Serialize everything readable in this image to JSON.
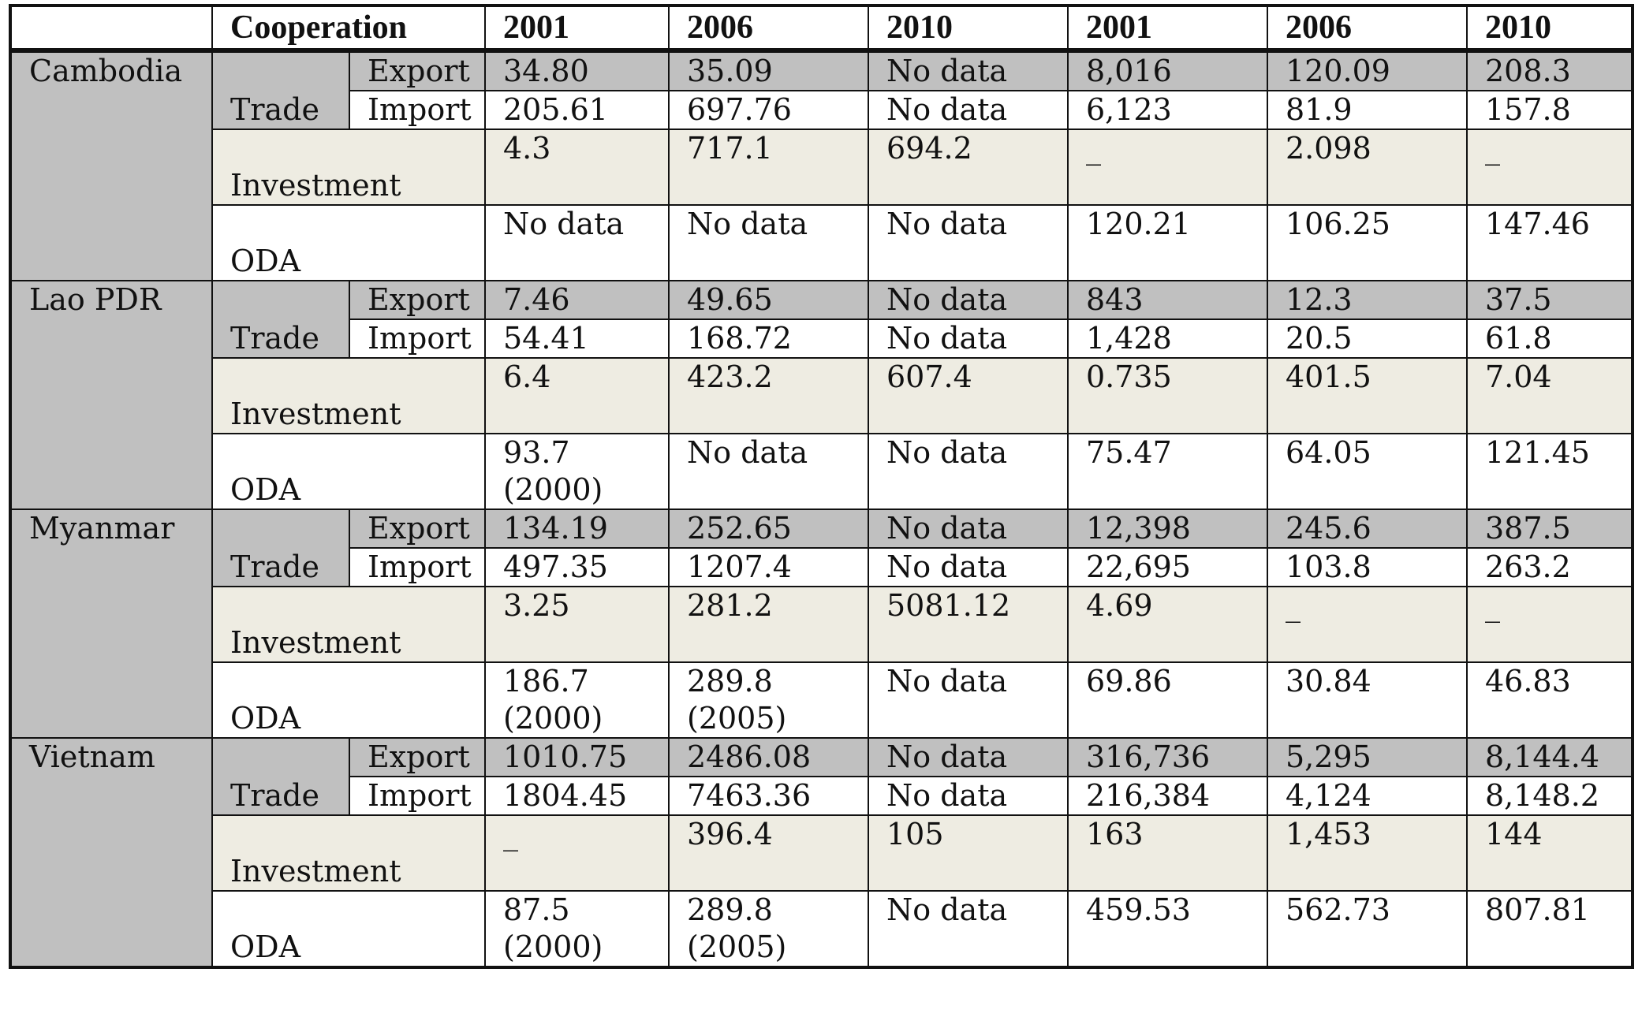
{
  "header": {
    "corner": "",
    "cooperation": "Cooperation",
    "years": [
      "2001",
      "2006",
      "2010",
      "2001",
      "2006",
      "2010"
    ]
  },
  "labels": {
    "trade": "Trade",
    "export": "Export",
    "import": "Import",
    "investment": "Investment",
    "oda": "ODA"
  },
  "countries": [
    {
      "name": "Cambodia",
      "export": [
        "34.80",
        "35.09",
        "No data",
        "8,016",
        "120.09",
        "208.3"
      ],
      "import": [
        "205.61",
        "697.76",
        "No data",
        "6,123",
        "81.9",
        "157.8"
      ],
      "investment": [
        "4.3",
        "717.1",
        "694.2",
        "_",
        "2.098",
        "_"
      ],
      "oda": [
        [
          "No data"
        ],
        [
          "No data"
        ],
        [
          "No data"
        ],
        [
          "120.21"
        ],
        [
          "106.25"
        ],
        [
          "147.46"
        ]
      ]
    },
    {
      "name": "Lao PDR",
      "export": [
        "7.46",
        "49.65",
        "No data",
        "843",
        "12.3",
        "37.5"
      ],
      "import": [
        "54.41",
        "168.72",
        "No data",
        "1,428",
        "20.5",
        "61.8"
      ],
      "investment": [
        "6.4",
        "423.2",
        "607.4",
        "0.735",
        "401.5",
        "7.04"
      ],
      "oda": [
        [
          "93.7",
          "(2000)"
        ],
        [
          "No data"
        ],
        [
          "No data"
        ],
        [
          "75.47"
        ],
        [
          "64.05"
        ],
        [
          "121.45"
        ]
      ]
    },
    {
      "name": "Myanmar",
      "export": [
        "134.19",
        "252.65",
        "No data",
        "12,398",
        "245.6",
        "387.5"
      ],
      "import": [
        "497.35",
        "1207.4",
        "No data",
        "22,695",
        "103.8",
        "263.2"
      ],
      "investment": [
        "3.25",
        "281.2",
        "5081.12",
        "4.69",
        "_",
        "_"
      ],
      "oda": [
        [
          "186.7",
          "(2000)"
        ],
        [
          "289.8",
          "(2005)"
        ],
        [
          "No data"
        ],
        [
          "69.86"
        ],
        [
          "30.84"
        ],
        [
          "46.83"
        ]
      ]
    },
    {
      "name": "Vietnam",
      "export": [
        "1010.75",
        "2486.08",
        "No data",
        "316,736",
        "5,295",
        "8,144.4"
      ],
      "import": [
        "1804.45",
        "7463.36",
        "No data",
        "216,384",
        "4,124",
        "8,148.2"
      ],
      "investment": [
        "_",
        "396.4",
        "105",
        "163",
        "1,453",
        "144"
      ],
      "oda": [
        [
          "87.5",
          "(2000)"
        ],
        [
          "289.8",
          "(2005)"
        ],
        [
          "No data"
        ],
        [
          "459.53"
        ],
        [
          "562.73"
        ],
        [
          "807.81"
        ]
      ]
    }
  ]
}
